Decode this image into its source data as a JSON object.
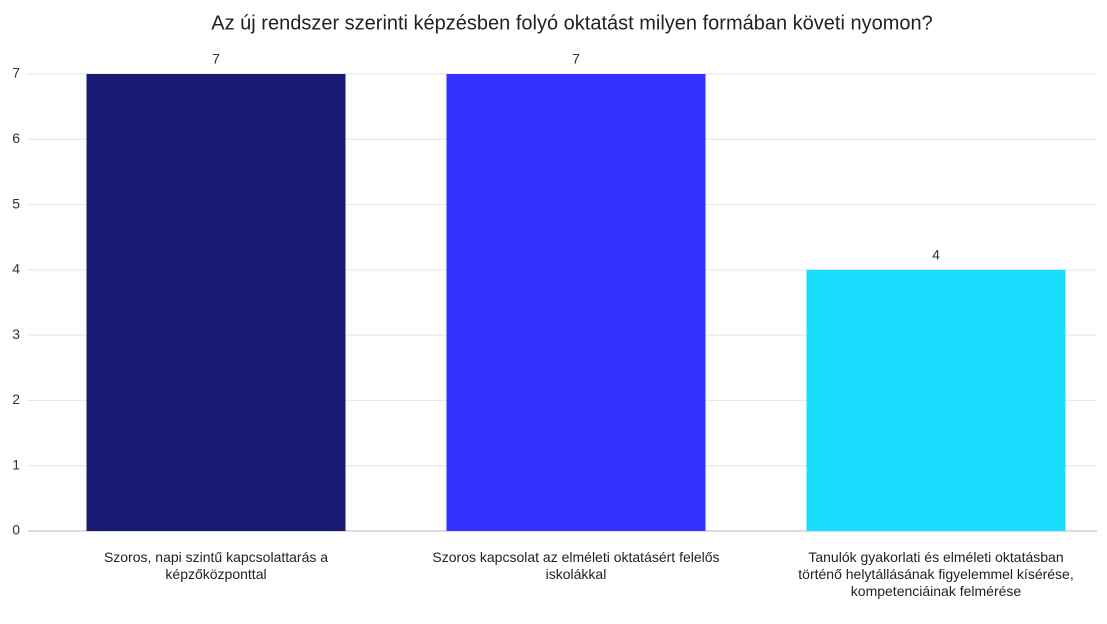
{
  "chart_data": {
    "type": "bar",
    "title": "Az új rendszer szerinti képzésben folyó oktatást milyen formában követi nyomon?",
    "categories": [
      "Szoros, napi szintű kapcsolattarás a képzőközponttal",
      "Szoros kapcsolat az elméleti oktatásért felelős iskolákkal",
      "Tanulók gyakorlati és elméleti oktatásban történő helytállásának figyelemmel kísérése, kompetenciáinak felmérése"
    ],
    "values": [
      7,
      7,
      4
    ],
    "colors": [
      "#1a1a75",
      "#3333ff",
      "#1adcff"
    ],
    "ylim": [
      0,
      7
    ],
    "yticks": [
      0,
      1,
      2,
      3,
      4,
      5,
      6,
      7
    ],
    "grid": true
  }
}
